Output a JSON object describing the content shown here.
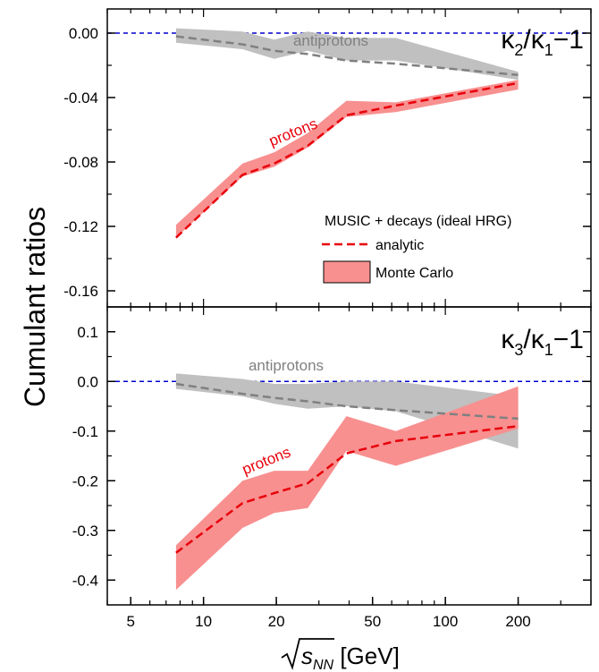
{
  "figure": {
    "ylabel": "Cumulant ratios",
    "xlabel_main": "s",
    "xlabel_sub": "NN",
    "xlabel_unit": " [GeV]",
    "x_scale": "log",
    "xlim": [
      4,
      400
    ],
    "x_ticks": [
      5,
      10,
      20,
      50,
      100,
      200
    ],
    "x_tick_labels": [
      "5",
      "10",
      "20",
      "50",
      "100",
      "200"
    ]
  },
  "colors": {
    "antiproton_band": "#c0c0c0",
    "proton_band": "#f89090",
    "analytic_proton": "#e8000b",
    "analytic_antiproton": "#808080",
    "zero_line": "#0000cc",
    "label_proton": "#e8000b",
    "label_antiproton": "#808080"
  },
  "legend": {
    "title": "MUSIC + decays (ideal HRG)",
    "analytic_label": "analytic",
    "monte_carlo_label": "Monte Carlo"
  },
  "chart_data": [
    {
      "type": "area",
      "panel": "top",
      "title_num": "κ",
      "title_num_sub": "2",
      "title_den": "κ",
      "title_den_sub": "1",
      "title_tail": "−1",
      "ylim": [
        -0.17,
        0.015
      ],
      "y_ticks": [
        0.0,
        -0.04,
        -0.08,
        -0.12,
        -0.16
      ],
      "y_tick_labels": [
        "0.00",
        "-0.04",
        "-0.08",
        "-0.12",
        "-0.16"
      ],
      "label_antiprotons": "antiprotons",
      "label_protons": "protons",
      "series": [
        {
          "name": "antiprotons",
          "x": [
            7.7,
            14.5,
            19.6,
            27,
            39,
            62.4,
            200
          ],
          "band_low": [
            -0.006,
            -0.01,
            -0.016,
            -0.011,
            -0.017,
            -0.017,
            -0.029
          ],
          "band_high": [
            0.003,
            0.001,
            -0.004,
            0.001,
            -0.003,
            -0.003,
            -0.024
          ],
          "analytic": [
            -0.002,
            -0.007,
            -0.011,
            -0.013,
            -0.017,
            -0.019,
            -0.026
          ]
        },
        {
          "name": "protons",
          "x": [
            7.7,
            14.5,
            19.6,
            27,
            39,
            62.4,
            200
          ],
          "band_low": [
            -0.127,
            -0.089,
            -0.083,
            -0.071,
            -0.052,
            -0.049,
            -0.035
          ],
          "band_high": [
            -0.119,
            -0.081,
            -0.074,
            -0.062,
            -0.042,
            -0.043,
            -0.029
          ],
          "analytic": [
            -0.127,
            -0.088,
            -0.081,
            -0.07,
            -0.051,
            -0.045,
            -0.031
          ]
        }
      ]
    },
    {
      "type": "area",
      "panel": "bottom",
      "title_num": "κ",
      "title_num_sub": "3",
      "title_den": "κ",
      "title_den_sub": "1",
      "title_tail": "−1",
      "ylim": [
        -0.45,
        0.15
      ],
      "y_ticks": [
        0.1,
        0.0,
        -0.1,
        -0.2,
        -0.3,
        -0.4
      ],
      "y_tick_labels": [
        "0.1",
        "0.0",
        "-0.1",
        "-0.2",
        "-0.3",
        "-0.4"
      ],
      "label_antiprotons": "antiprotons",
      "label_protons": "protons",
      "series": [
        {
          "name": "antiprotons",
          "x": [
            7.7,
            14.5,
            19.6,
            27,
            39,
            62.4,
            200
          ],
          "band_low": [
            -0.015,
            -0.03,
            -0.045,
            -0.055,
            -0.05,
            -0.06,
            -0.135
          ],
          "band_high": [
            0.016,
            0.005,
            -0.005,
            -0.005,
            0.0,
            0.0,
            -0.03
          ],
          "analytic": [
            -0.005,
            -0.025,
            -0.033,
            -0.04,
            -0.05,
            -0.058,
            -0.075
          ]
        },
        {
          "name": "protons",
          "x": [
            7.7,
            14.5,
            19.6,
            27,
            39,
            62.4,
            200
          ],
          "band_low": [
            -0.42,
            -0.295,
            -0.265,
            -0.255,
            -0.14,
            -0.17,
            -0.095
          ],
          "band_high": [
            -0.33,
            -0.2,
            -0.18,
            -0.18,
            -0.07,
            -0.1,
            -0.01
          ],
          "analytic": [
            -0.345,
            -0.245,
            -0.225,
            -0.205,
            -0.145,
            -0.12,
            -0.09
          ]
        }
      ]
    }
  ]
}
